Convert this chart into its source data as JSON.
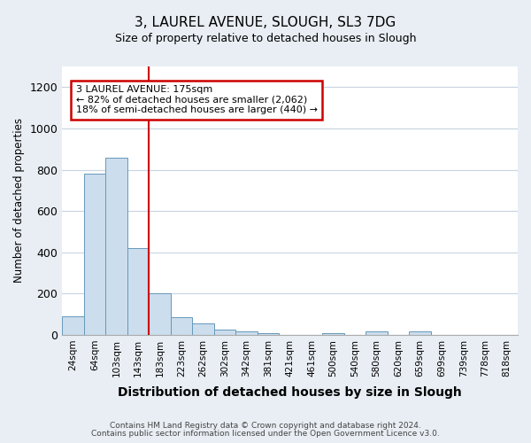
{
  "title_line1": "3, LAUREL AVENUE, SLOUGH, SL3 7DG",
  "title_line2": "Size of property relative to detached houses in Slough",
  "xlabel": "Distribution of detached houses by size in Slough",
  "ylabel": "Number of detached properties",
  "categories": [
    "24sqm",
    "64sqm",
    "103sqm",
    "143sqm",
    "183sqm",
    "223sqm",
    "262sqm",
    "302sqm",
    "342sqm",
    "381sqm",
    "421sqm",
    "461sqm",
    "500sqm",
    "540sqm",
    "580sqm",
    "620sqm",
    "659sqm",
    "699sqm",
    "739sqm",
    "778sqm",
    "818sqm"
  ],
  "values": [
    90,
    780,
    860,
    420,
    200,
    85,
    55,
    25,
    15,
    10,
    0,
    0,
    10,
    0,
    15,
    0,
    15,
    0,
    0,
    0,
    0
  ],
  "bar_color": "#ccdded",
  "bar_edge_color": "#6699bb",
  "red_line_index": 3.5,
  "annotation_text_line1": "3 LAUREL AVENUE: 175sqm",
  "annotation_text_line2": "← 82% of detached houses are smaller (2,062)",
  "annotation_text_line3": "18% of semi-detached houses are larger (440) →",
  "annotation_box_color": "white",
  "annotation_box_edge": "#cc0000",
  "ylim": [
    0,
    1300
  ],
  "yticks": [
    0,
    200,
    400,
    600,
    800,
    1000,
    1200
  ],
  "footer_line1": "Contains HM Land Registry data © Crown copyright and database right 2024.",
  "footer_line2": "Contains public sector information licensed under the Open Government Licence v3.0.",
  "bg_color": "#e8eef4",
  "plot_bg_color": "#ffffff",
  "grid_color": "#c8d4e0",
  "title_fontsize": 11,
  "subtitle_fontsize": 9,
  "xlabel_fontsize": 10,
  "ylabel_fontsize": 8.5
}
